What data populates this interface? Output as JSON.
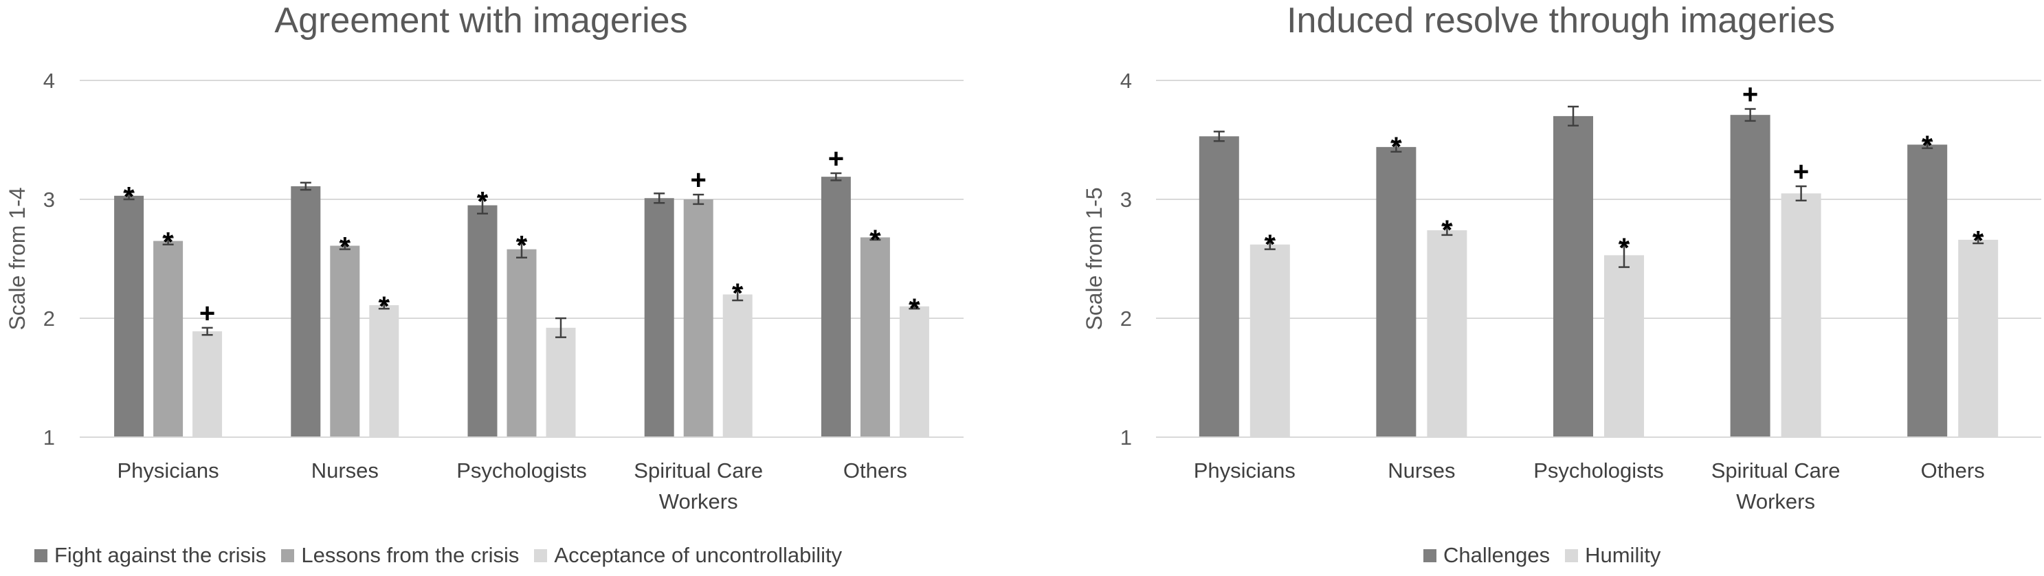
{
  "chart_data": [
    {
      "type": "bar",
      "title": "Agreement with imageries",
      "ylabel": "Scale from 1-4",
      "ylim": [
        1,
        4
      ],
      "yticks": [
        "1",
        "2",
        "3",
        "4"
      ],
      "categories": [
        "Physicians",
        "Nurses",
        "Psychologists",
        "Spiritual Care Workers",
        "Others"
      ],
      "series": [
        {
          "name": "Fight against the crisis",
          "color": "#7f7f7f",
          "values": [
            3.03,
            3.11,
            2.95,
            3.01,
            3.19
          ],
          "errors": [
            0.03,
            0.03,
            0.07,
            0.04,
            0.03
          ],
          "marks": [
            "*",
            "",
            "*",
            "",
            "+"
          ]
        },
        {
          "name": "Lessons from the crisis",
          "color": "#a6a6a6",
          "values": [
            2.65,
            2.61,
            2.58,
            3.0,
            2.68
          ],
          "errors": [
            0.03,
            0.03,
            0.07,
            0.04,
            0.02
          ],
          "marks": [
            "*",
            "*",
            "*",
            "+",
            "*"
          ]
        },
        {
          "name": "Acceptance of uncontrollability",
          "color": "#d9d9d9",
          "values": [
            1.89,
            2.11,
            1.92,
            2.2,
            2.1
          ],
          "errors": [
            0.03,
            0.03,
            0.08,
            0.05,
            0.02
          ],
          "marks": [
            "+",
            "*",
            "",
            "*",
            "*"
          ]
        }
      ]
    },
    {
      "type": "bar",
      "title": "Induced resolve through imageries",
      "ylabel": "Scale from 1-5",
      "ylim": [
        1,
        4
      ],
      "yticks": [
        "1",
        "2",
        "3",
        "4"
      ],
      "categories": [
        "Physicians",
        "Nurses",
        "Psychologists",
        "Spiritual Care Workers",
        "Others"
      ],
      "series": [
        {
          "name": "Challenges",
          "color": "#7f7f7f",
          "values": [
            3.53,
            3.44,
            3.7,
            3.71,
            3.46
          ],
          "errors": [
            0.04,
            0.04,
            0.08,
            0.05,
            0.03
          ],
          "marks": [
            "",
            "*",
            "",
            "+",
            "*"
          ]
        },
        {
          "name": "Humility",
          "color": "#d9d9d9",
          "values": [
            2.62,
            2.74,
            2.53,
            3.05,
            2.66
          ],
          "errors": [
            0.04,
            0.04,
            0.1,
            0.06,
            0.03
          ],
          "marks": [
            "*",
            "*",
            "*",
            "+",
            "*"
          ]
        }
      ]
    }
  ]
}
